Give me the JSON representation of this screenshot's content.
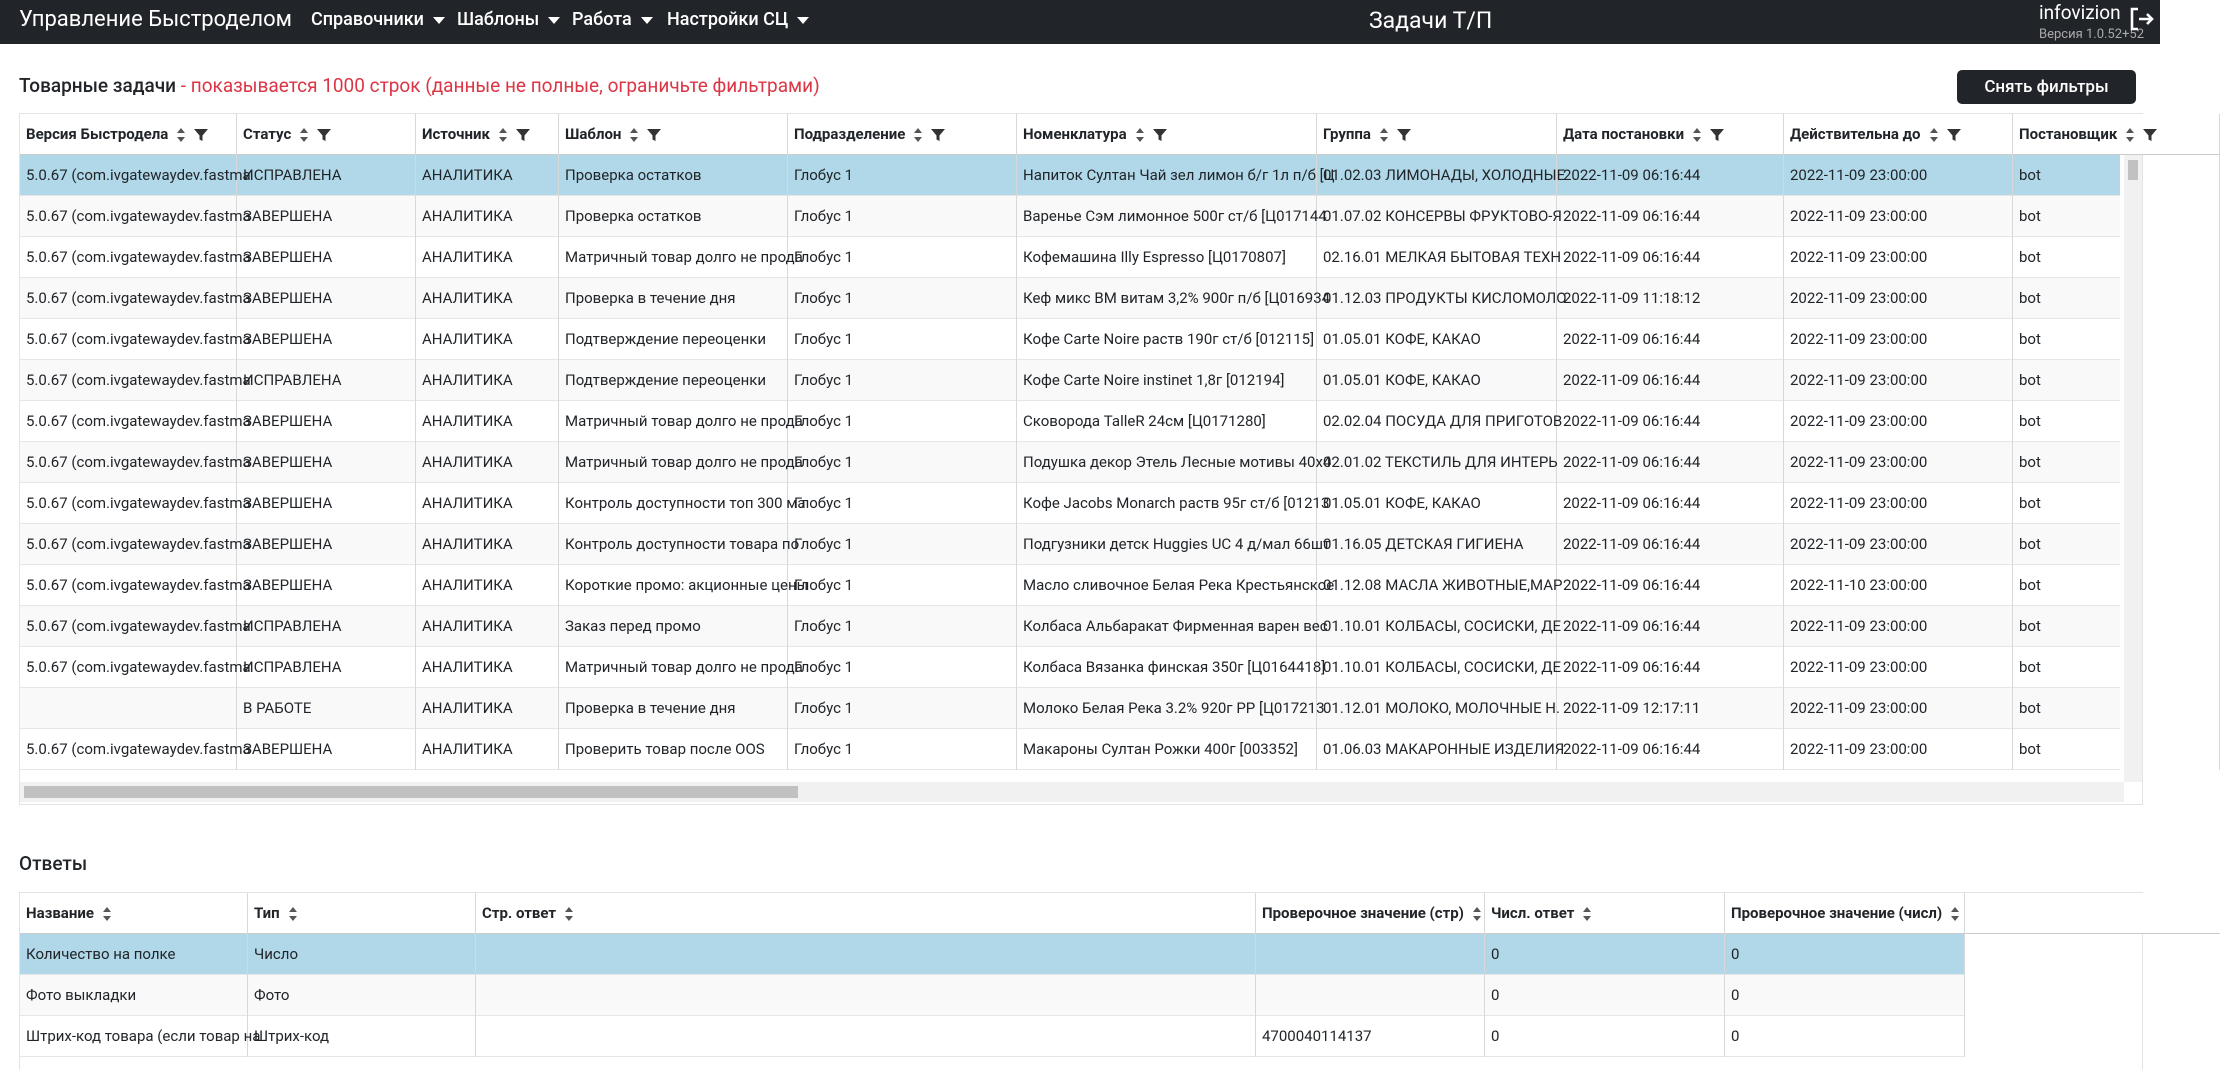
{
  "header": {
    "brand": "Управление Быстроделом",
    "menu": [
      "Справочники",
      "Шаблоны",
      "Работа",
      "Настройки СЦ"
    ],
    "page_title": "Задачи Т/П",
    "logo": "infovizion",
    "version": "Версия 1.0.52+52"
  },
  "tasks": {
    "title": "Товарные задачи",
    "note": "- показывается 1000 строк (данные не полные, ограничьте фильтрами)",
    "reset_button": "Снять фильтры",
    "columns": [
      "Версия Быстродела",
      "Статус",
      "Источник",
      "Шаблон",
      "Подразделение",
      "Номенклатура",
      "Группа",
      "Дата постановки",
      "Действительна до",
      "Постановщик"
    ],
    "rows": [
      [
        "5.0.67 (com.ivgatewaydev.fastma",
        "ИСПРАВЛЕНА",
        "АНАЛИТИКА",
        "Проверка остатков",
        "Глобус 1",
        "Напиток Султан Чай зел лимон б/г 1л п/б [Ц",
        "01.02.03 ЛИМОНАДЫ, ХОЛОДНЫЕ",
        "2022-11-09 06:16:44",
        "2022-11-09 23:00:00",
        "bot"
      ],
      [
        "5.0.67 (com.ivgatewaydev.fastma",
        "ЗАВЕРШЕНА",
        "АНАЛИТИКА",
        "Проверка остатков",
        "Глобус 1",
        "Варенье Сэм лимонное 500г ст/б [Ц017144",
        "01.07.02 КОНСЕРВЫ ФРУКТОВО-Я",
        "2022-11-09 06:16:44",
        "2022-11-09 23:00:00",
        "bot"
      ],
      [
        "5.0.67 (com.ivgatewaydev.fastma",
        "ЗАВЕРШЕНА",
        "АНАЛИТИКА",
        "Матричный товар долго не прода",
        "Глобус 1",
        "Кофемашина Illy Espresso [Ц0170807]",
        "02.16.01 МЕЛКАЯ БЫТОВАЯ ТЕХН",
        "2022-11-09 06:16:44",
        "2022-11-09 23:00:00",
        "bot"
      ],
      [
        "5.0.67 (com.ivgatewaydev.fastma",
        "ЗАВЕРШЕНА",
        "АНАЛИТИКА",
        "Проверка в течение дня",
        "Глобус 1",
        "Кеф микс BM витам 3,2% 900г п/б [Ц016934",
        "01.12.03 ПРОДУКТЫ КИСЛОМОЛО",
        "2022-11-09 11:18:12",
        "2022-11-09 23:00:00",
        "bot"
      ],
      [
        "5.0.67 (com.ivgatewaydev.fastma",
        "ЗАВЕРШЕНА",
        "АНАЛИТИКА",
        "Подтверждение переоценки",
        "Глобус 1",
        "Кофе Carte Noire раств 190г ст/б [012115]",
        "01.05.01 КОФЕ, КАКАО",
        "2022-11-09 06:16:44",
        "2022-11-09 23:00:00",
        "bot"
      ],
      [
        "5.0.67 (com.ivgatewaydev.fastma",
        "ИСПРАВЛЕНА",
        "АНАЛИТИКА",
        "Подтверждение переоценки",
        "Глобус 1",
        "Кофе Carte Noire instinet 1,8г [012194]",
        "01.05.01 КОФЕ, КАКАО",
        "2022-11-09 06:16:44",
        "2022-11-09 23:00:00",
        "bot"
      ],
      [
        "5.0.67 (com.ivgatewaydev.fastma",
        "ЗАВЕРШЕНА",
        "АНАЛИТИКА",
        "Матричный товар долго не прода",
        "Глобус 1",
        "Сковорода TalleR 24см [Ц0171280]",
        "02.02.04 ПОСУДА ДЛЯ ПРИГОТОВ",
        "2022-11-09 06:16:44",
        "2022-11-09 23:00:00",
        "bot"
      ],
      [
        "5.0.67 (com.ivgatewaydev.fastma",
        "ЗАВЕРШЕНА",
        "АНАЛИТИКА",
        "Матричный товар долго не прода",
        "Глобус 1",
        "Подушка декор Этель Лесные мотивы 40х4",
        "02.01.02 ТЕКСТИЛЬ ДЛЯ ИНТЕРЬ",
        "2022-11-09 06:16:44",
        "2022-11-09 23:00:00",
        "bot"
      ],
      [
        "5.0.67 (com.ivgatewaydev.fastma",
        "ЗАВЕРШЕНА",
        "АНАЛИТИКА",
        "Контроль доступности топ 300 ма",
        "Глобус 1",
        "Кофе Jacobs Monarch раств 95г ст/б [01213",
        "01.05.01 КОФЕ, КАКАО",
        "2022-11-09 06:16:44",
        "2022-11-09 23:00:00",
        "bot"
      ],
      [
        "5.0.67 (com.ivgatewaydev.fastma",
        "ЗАВЕРШЕНА",
        "АНАЛИТИКА",
        "Контроль доступности товара по",
        "Глобус 1",
        "Подгузники детск Huggies UC 4 д/мал 66шт",
        "01.16.05 ДЕТСКАЯ ГИГИЕНА",
        "2022-11-09 06:16:44",
        "2022-11-09 23:00:00",
        "bot"
      ],
      [
        "5.0.67 (com.ivgatewaydev.fastma",
        "ЗАВЕРШЕНА",
        "АНАЛИТИКА",
        "Короткие промо: акционные цены",
        "Глобус 1",
        "Масло сливочное Белая Река Крестьянское",
        "01.12.08 МАСЛА ЖИВОТНЫЕ,МАР",
        "2022-11-09 06:16:44",
        "2022-11-10 23:00:00",
        "bot"
      ],
      [
        "5.0.67 (com.ivgatewaydev.fastma",
        "ИСПРАВЛЕНА",
        "АНАЛИТИКА",
        "Заказ перед промо",
        "Глобус 1",
        "Колбаса Альбаракат Фирменная варен вес",
        "01.10.01 КОЛБАСЫ, СОСИСКИ, ДЕ",
        "2022-11-09 06:16:44",
        "2022-11-09 23:00:00",
        "bot"
      ],
      [
        "5.0.67 (com.ivgatewaydev.fastma",
        "ИСПРАВЛЕНА",
        "АНАЛИТИКА",
        "Матричный товар долго не прода",
        "Глобус 1",
        "Колбаса Вязанка финская 350г [Ц0164418]",
        "01.10.01 КОЛБАСЫ, СОСИСКИ, ДЕ",
        "2022-11-09 06:16:44",
        "2022-11-09 23:00:00",
        "bot"
      ],
      [
        null,
        "В РАБОТЕ",
        "АНАЛИТИКА",
        "Проверка в течение дня",
        "Глобус 1",
        "Молоко Белая Река 3.2% 920г PP [Ц017213",
        "01.12.01 МОЛОКО, МОЛОЧНЫЕ Н.",
        "2022-11-09 12:17:11",
        "2022-11-09 23:00:00",
        "bot"
      ],
      [
        "5.0.67 (com.ivgatewaydev.fastma",
        "ЗАВЕРШЕНА",
        "АНАЛИТИКА",
        "Проверить товар после OOS",
        "Глобус 1",
        "Макароны Султан Рожки 400г [003352]",
        "01.06.03 МАКАРОННЫЕ ИЗДЕЛИЯ",
        "2022-11-09 06:16:44",
        "2022-11-09 23:00:00",
        "bot"
      ]
    ]
  },
  "answers": {
    "title": "Ответы",
    "columns": [
      "Название",
      "Тип",
      "Стр. ответ",
      "Проверочное значение (стр)",
      "Числ. ответ",
      "Проверочное значение (числ)"
    ],
    "rows": [
      [
        "Количество на полке",
        "Число",
        null,
        null,
        "0",
        "0"
      ],
      [
        "Фото выкладки",
        "Фото",
        null,
        null,
        "0",
        "0"
      ],
      [
        "Штрих-код товара (если товар на",
        "Штрих-код",
        null,
        "4700040114137",
        "0",
        "0"
      ]
    ]
  }
}
